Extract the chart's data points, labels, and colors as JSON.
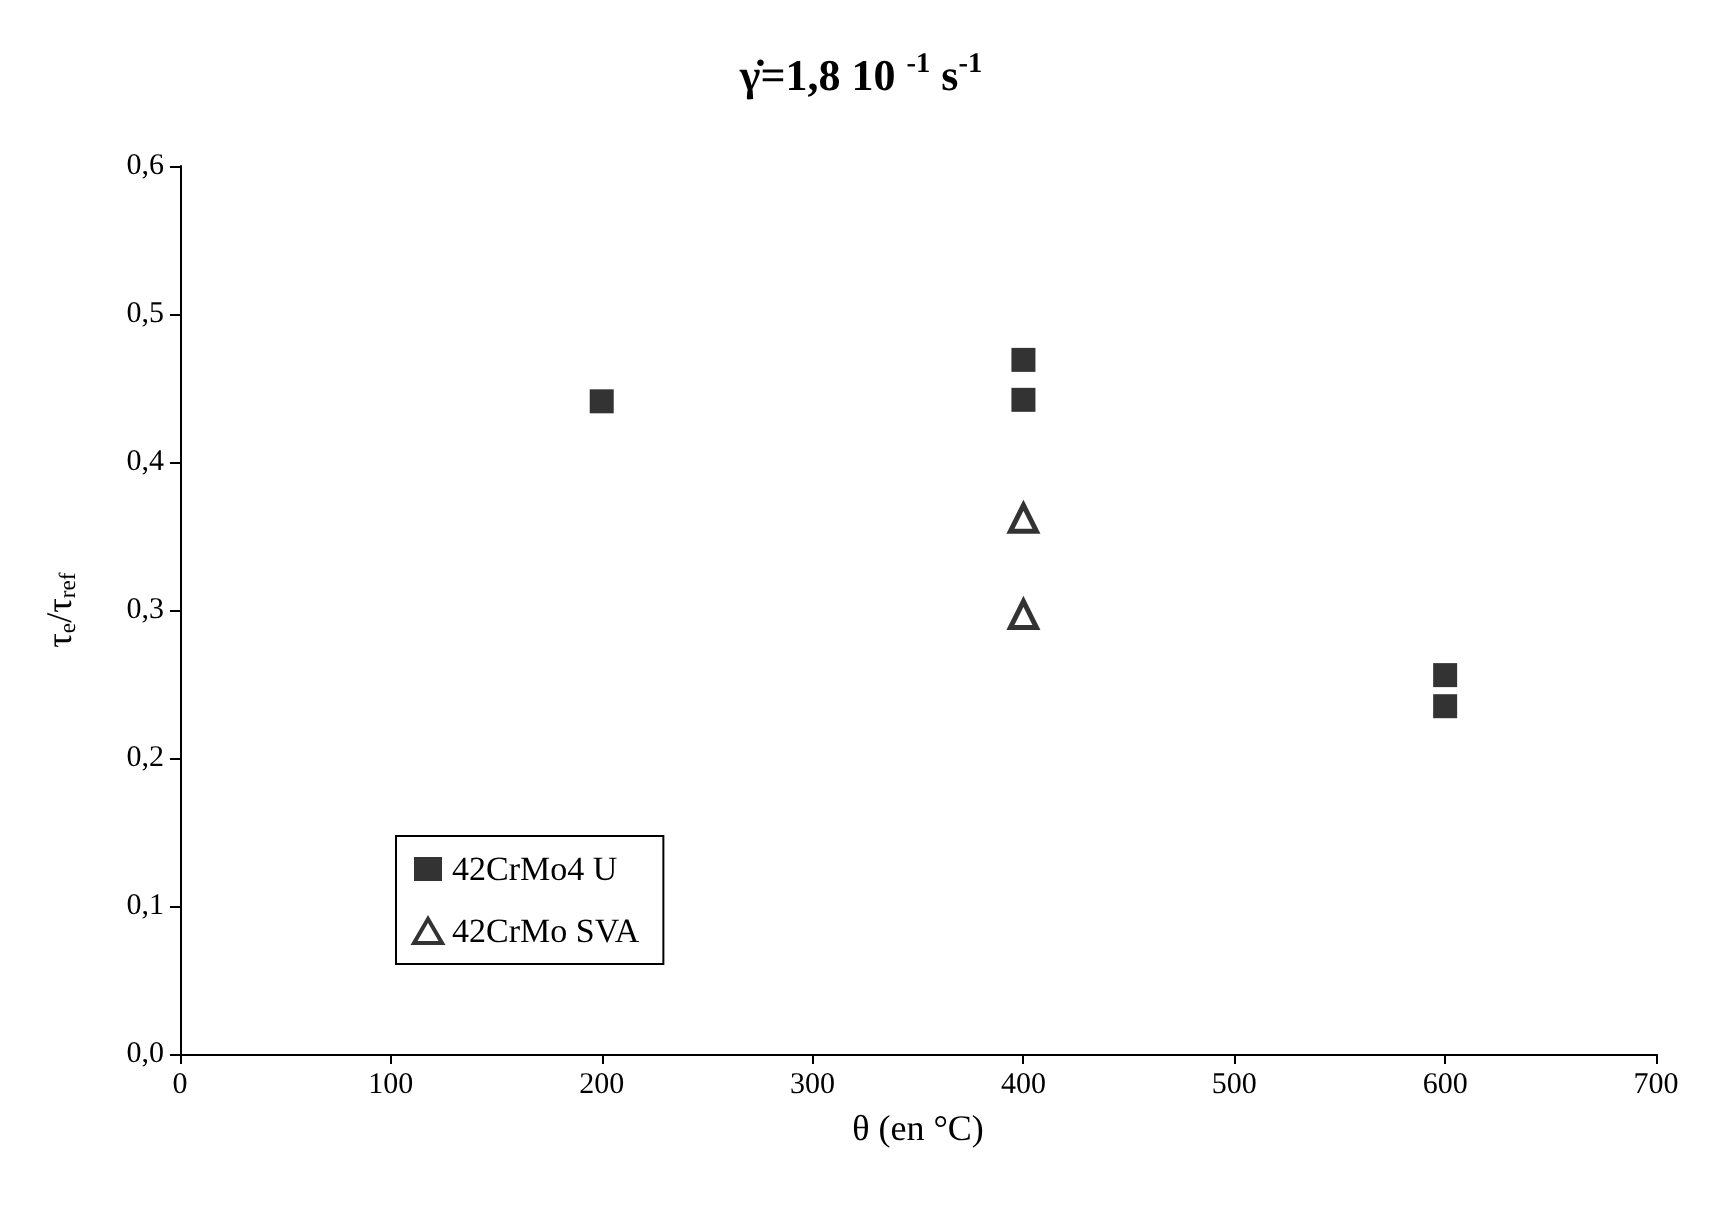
{
  "chart_data": {
    "type": "scatter",
    "title": "γ̇=1,8 10 $^{-1}$ s$^{-1}$",
    "xlabel": "θ (en °C)",
    "ylabel": "τ$_{e}$/τ$_{ref}$",
    "xlim": [
      0,
      700
    ],
    "xticks": [
      0,
      100,
      200,
      300,
      400,
      500,
      600,
      700
    ],
    "ylim": [
      0,
      0.6
    ],
    "yticks": [
      {
        "value": 0,
        "label": "0,0"
      },
      {
        "value": 0.1,
        "label": "0,1"
      },
      {
        "value": 0.2,
        "label": "0,2"
      },
      {
        "value": 0.3,
        "label": "0,3"
      },
      {
        "value": 0.4,
        "label": "0,4"
      },
      {
        "value": 0.5,
        "label": "0,5"
      },
      {
        "value": 0.6,
        "label": "0,6"
      }
    ],
    "grid": false,
    "legend": "bottom left",
    "series": [
      {
        "name": "42CrMo4 U",
        "color": "#000000",
        "marker": "square",
        "x": [
          200,
          400,
          400,
          600,
          600
        ],
        "values": [
          0.441,
          0.469,
          0.442,
          0.256,
          0.235
        ]
      },
      {
        "name": "42CrMo SVA",
        "color": "#000000",
        "marker": "triangle",
        "x": [
          400,
          400
        ],
        "values": [
          0.362,
          0.297
        ]
      }
    ]
  }
}
